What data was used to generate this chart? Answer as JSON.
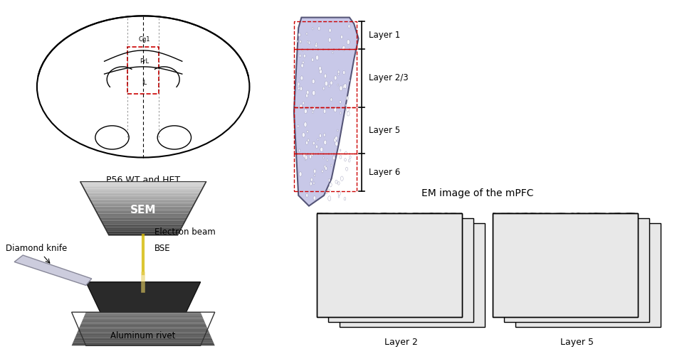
{
  "title": "",
  "background_color": "#ffffff",
  "brain_label": "P56 WT and HET",
  "layer_labels": [
    "Layer 1",
    "Layer 2/3",
    "Layer 5",
    "Layer 6"
  ],
  "em_title": "EM image of the mPFC",
  "layer2_label": "Layer 2",
  "layer5_label": "Layer 5",
  "sem_labels": {
    "sem": "SEM",
    "electron_beam": "Electron beam",
    "diamond_knife": "Diamond knife",
    "bse": "BSE",
    "aluminum_rivet": "Aluminum rivet"
  },
  "brain_region_labels": [
    "Cg1",
    "PrL",
    "IL"
  ],
  "dashed_box_color": "#cc0000",
  "layer_line_color": "#000000",
  "figure_width": 9.58,
  "figure_height": 4.91
}
